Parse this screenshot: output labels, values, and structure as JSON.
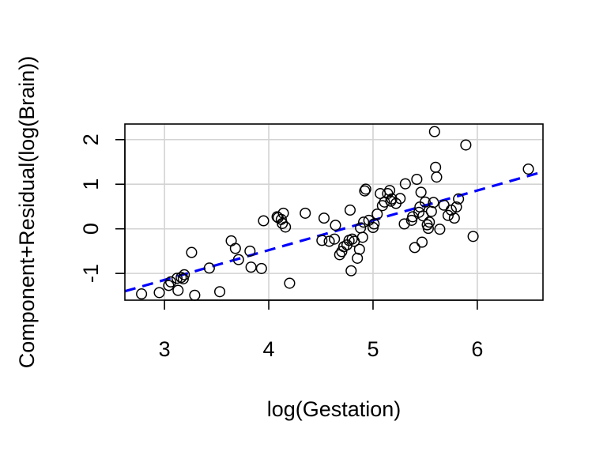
{
  "chart_data": {
    "type": "scatter",
    "xlabel": "log(Gestation)",
    "ylabel": "Component+Residual(log(Brain))",
    "xlim": [
      2.62,
      6.63
    ],
    "ylim": [
      -1.6,
      2.35
    ],
    "xticks": [
      3,
      4,
      5,
      6
    ],
    "yticks": [
      -1,
      0,
      1,
      2
    ],
    "grid": true,
    "point_color": "#000000",
    "line_color": "#0000ff",
    "fit_line": {
      "style": "dashed",
      "x": [
        2.62,
        6.63
      ],
      "y": [
        -1.4,
        1.28
      ]
    },
    "points": [
      [
        2.78,
        -1.46
      ],
      [
        2.95,
        -1.43
      ],
      [
        3.04,
        -1.27
      ],
      [
        3.06,
        -1.19
      ],
      [
        3.12,
        -1.11
      ],
      [
        3.13,
        -1.38
      ],
      [
        3.16,
        -1.09
      ],
      [
        3.18,
        -1.12
      ],
      [
        3.19,
        -1.03
      ],
      [
        3.26,
        -0.53
      ],
      [
        3.29,
        -1.49
      ],
      [
        3.43,
        -0.88
      ],
      [
        3.53,
        -1.41
      ],
      [
        3.64,
        -0.27
      ],
      [
        3.68,
        -0.44
      ],
      [
        3.71,
        -0.69
      ],
      [
        3.82,
        -0.5
      ],
      [
        3.83,
        -0.86
      ],
      [
        3.93,
        -0.89
      ],
      [
        3.95,
        0.18
      ],
      [
        4.08,
        0.27
      ],
      [
        4.09,
        0.25
      ],
      [
        4.12,
        0.21
      ],
      [
        4.13,
        0.12
      ],
      [
        4.14,
        0.35
      ],
      [
        4.16,
        0.04
      ],
      [
        4.2,
        -1.22
      ],
      [
        4.35,
        0.35
      ],
      [
        4.51,
        -0.26
      ],
      [
        4.53,
        0.24
      ],
      [
        4.58,
        -0.28
      ],
      [
        4.63,
        -0.23
      ],
      [
        4.64,
        0.08
      ],
      [
        4.68,
        -0.58
      ],
      [
        4.7,
        -0.51
      ],
      [
        4.72,
        -0.4
      ],
      [
        4.75,
        -0.36
      ],
      [
        4.77,
        -0.26
      ],
      [
        4.78,
        0.42
      ],
      [
        4.79,
        -0.94
      ],
      [
        4.8,
        -0.23
      ],
      [
        4.82,
        -0.28
      ],
      [
        4.85,
        -0.66
      ],
      [
        4.87,
        -0.46
      ],
      [
        4.88,
        0.02
      ],
      [
        4.9,
        -0.19
      ],
      [
        4.91,
        0.15
      ],
      [
        4.92,
        0.85
      ],
      [
        4.93,
        0.89
      ],
      [
        4.96,
        0.19
      ],
      [
        5.0,
        0.03
      ],
      [
        5.01,
        0.11
      ],
      [
        5.04,
        0.33
      ],
      [
        5.07,
        0.79
      ],
      [
        5.09,
        0.52
      ],
      [
        5.11,
        0.6
      ],
      [
        5.14,
        0.79
      ],
      [
        5.16,
        0.86
      ],
      [
        5.17,
        0.62
      ],
      [
        5.18,
        0.67
      ],
      [
        5.22,
        0.57
      ],
      [
        5.26,
        0.68
      ],
      [
        5.3,
        0.11
      ],
      [
        5.31,
        1.01
      ],
      [
        5.37,
        0.19
      ],
      [
        5.38,
        0.27
      ],
      [
        5.4,
        -0.42
      ],
      [
        5.42,
        1.11
      ],
      [
        5.44,
        0.37
      ],
      [
        5.45,
        0.49
      ],
      [
        5.46,
        0.82
      ],
      [
        5.47,
        -0.3
      ],
      [
        5.48,
        0.29
      ],
      [
        5.5,
        0.6
      ],
      [
        5.52,
        0.09
      ],
      [
        5.53,
        0.01
      ],
      [
        5.54,
        0.15
      ],
      [
        5.56,
        0.39
      ],
      [
        5.58,
        0.59
      ],
      [
        5.59,
        2.18
      ],
      [
        5.6,
        1.38
      ],
      [
        5.61,
        1.16
      ],
      [
        5.64,
        -0.01
      ],
      [
        5.68,
        0.53
      ],
      [
        5.72,
        0.3
      ],
      [
        5.75,
        0.42
      ],
      [
        5.78,
        0.24
      ],
      [
        5.8,
        0.49
      ],
      [
        5.82,
        0.67
      ],
      [
        5.89,
        1.88
      ],
      [
        5.96,
        -0.17
      ],
      [
        6.49,
        1.34
      ]
    ]
  }
}
